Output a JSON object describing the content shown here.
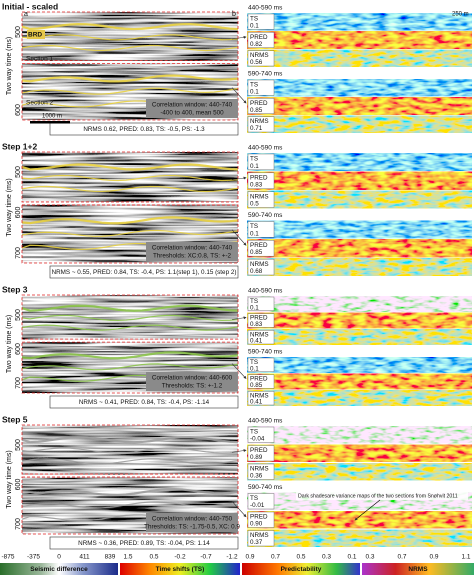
{
  "panels": [
    {
      "title": "Initial - scaled",
      "y_label": "Two way time (ms)",
      "y_ticks": [
        "500",
        "600"
      ],
      "window": [
        "Correlation window: 440-740",
        "-400 to 400, mean 500"
      ],
      "stats": "NRMS 0.62, PRED: 0.83, TS: -0.5, PS: -1.3",
      "maps": [
        {
          "window": "440-590 ms",
          "ts": "0.1",
          "pred": "0.82",
          "nrms": "0.56"
        },
        {
          "window": "590-740 ms",
          "ts": "0.1",
          "pred": "0.85",
          "nrms": "0.71"
        }
      ]
    },
    {
      "title": "Step 1+2",
      "y_label": "Two way time (ms)",
      "y_ticks": [
        "500",
        "600",
        "700"
      ],
      "window": [
        "Correlation window: 440-740",
        "Thresholds: XC:0.8, TS: +-2"
      ],
      "stats": "NRMS ~ 0.55, PRED: 0.84, TS: -0.4, PS: 1.1(step 1), 0.15 (step 2)",
      "maps": [
        {
          "window": "440-590 ms",
          "ts": "0.1",
          "pred": "0.83",
          "nrms": "0.5"
        },
        {
          "window": "590-740 ms",
          "ts": "0.1",
          "pred": "0.85",
          "nrms": "0.68"
        }
      ]
    },
    {
      "title": "Step 3",
      "y_label": "Two way time (ms)",
      "y_ticks": [
        "500",
        "600",
        "700"
      ],
      "window": [
        "Correlation window: 440-600",
        "Thresholds: TS: +-1.2"
      ],
      "stats": "NRMS ~ 0.41, PRED: 0.84, TS: -0.4, PS: -1.14",
      "maps": [
        {
          "window": "440-590 ms",
          "ts": "0.1",
          "pred": "0.83",
          "nrms": "0.41"
        },
        {
          "window": "590-740 ms",
          "ts": "0.1",
          "pred": "0.85",
          "nrms": "0.41"
        }
      ]
    },
    {
      "title": "Step 5",
      "y_label": "Two way time (ms)",
      "y_ticks": [
        "500",
        "600",
        "700"
      ],
      "window": [
        "Correlation window: 440-750",
        "Thresholds: TS: -1.75-0.5, XC: 0.9"
      ],
      "stats": "NRMS ~ 0.36, PRED: 0.89, TS: -0.04, PS: 1.14",
      "maps": [
        {
          "window": "440-590 ms",
          "ts": "-0.04",
          "pred": "0.89",
          "nrms": "0.36"
        },
        {
          "window": "590-740 ms",
          "ts": "-0.01",
          "pred": "0.90",
          "nrms": "0.37"
        }
      ]
    }
  ],
  "map_labels": {
    "ts": "TS",
    "pred": "PRED",
    "nrms": "NRMS"
  },
  "annotations": {
    "a": "a",
    "b": "b",
    "brd": "BRD",
    "section_1": "Section 1",
    "section_2": "Section 2",
    "scale_left": "1000 m",
    "scale_right": "250 m",
    "note": "Dark shadesare variance maps of the two sections from Snøhvit 2011"
  },
  "colorbars": [
    {
      "title": "Seismic difference",
      "ticks": [
        "-875",
        "-375",
        "0",
        "411",
        "839"
      ]
    },
    {
      "title": "Time shifts (TS)",
      "ticks": [
        "1.5",
        "0.5",
        "-0.2",
        "-0.7",
        "-1.2"
      ]
    },
    {
      "title": "Predictability",
      "ticks": [
        "0.9",
        "0.7",
        "0.5",
        "0.3",
        "0.1"
      ]
    },
    {
      "title": "NRMS",
      "ticks": [
        "0.3",
        "0.7",
        "0.9",
        "1.1"
      ]
    }
  ]
}
